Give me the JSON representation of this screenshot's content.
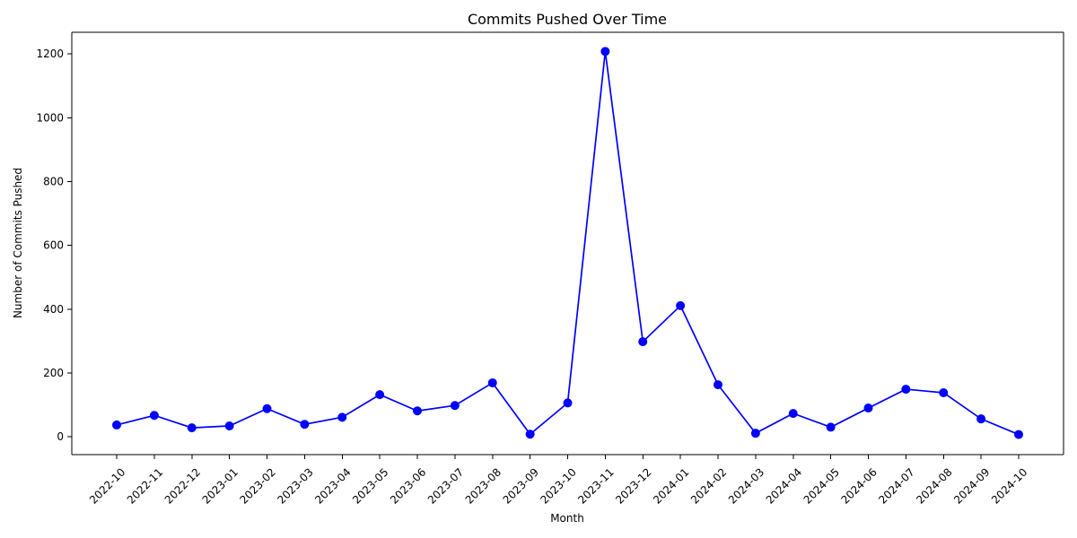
{
  "chart_data": {
    "type": "line",
    "title": "Commits Pushed Over Time",
    "xlabel": "Month",
    "ylabel": "Number of Commits Pushed",
    "categories": [
      "2022-10",
      "2022-11",
      "2022-12",
      "2023-01",
      "2023-02",
      "2023-03",
      "2023-04",
      "2023-05",
      "2023-06",
      "2023-07",
      "2023-08",
      "2023-09",
      "2023-10",
      "2023-11",
      "2023-12",
      "2024-01",
      "2024-02",
      "2024-03",
      "2024-04",
      "2024-05",
      "2024-06",
      "2024-07",
      "2024-08",
      "2024-09",
      "2024-10"
    ],
    "series": [
      {
        "values": [
          37,
          67,
          28,
          34,
          88,
          39,
          61,
          132,
          81,
          98,
          169,
          8,
          106,
          1208,
          298,
          411,
          163,
          11,
          73,
          30,
          90,
          149,
          138,
          56,
          7
        ],
        "color": "#0000ff",
        "marker": "circle"
      }
    ],
    "ylim": [
      -56,
      1268
    ],
    "yticks": [
      0,
      200,
      400,
      600,
      800,
      1000,
      1200
    ],
    "grid": false,
    "legend": "none"
  }
}
